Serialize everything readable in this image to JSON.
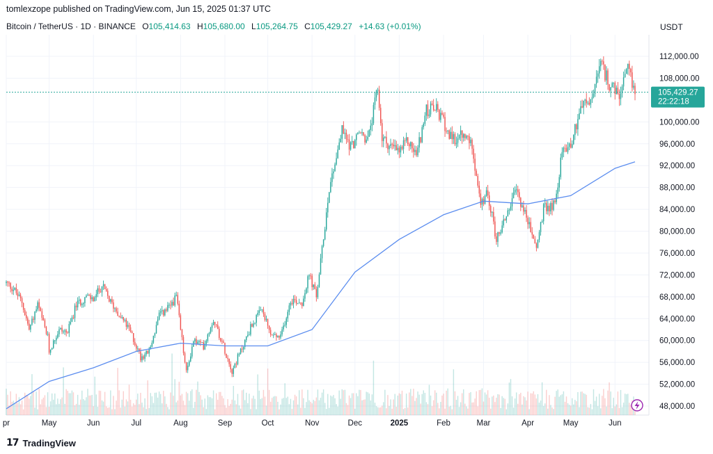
{
  "header": {
    "publisher": "tomlexzope published on TradingView.com, Jun 15, 2025 01:37 UTC",
    "symbol": "Bitcoin / TetherUS · 1D · BINANCE",
    "open_label": "O",
    "open_value": "105,414.63",
    "high_label": "H",
    "high_value": "105,680.00",
    "low_label": "L",
    "low_value": "105,264.75",
    "close_label": "C",
    "close_value": "105,429.27",
    "change": "+14.63 (+0.01%)",
    "currency": "USDT"
  },
  "footer": {
    "logo_mark": "17",
    "logo_text": "TradingView"
  },
  "colors": {
    "up": "#26a69a",
    "down": "#ef5350",
    "ma": "#5b8def",
    "last_price": "#26a69a",
    "grid": "#f0f3fa"
  },
  "chart_data": {
    "type": "candlestick",
    "y_ticks": [
      "112,000.00",
      "108,000.00",
      "100,000.00",
      "96,000.00",
      "92,000.00",
      "88,000.00",
      "84,000.00",
      "80,000.00",
      "76,000.00",
      "72,000.00",
      "68,000.00",
      "64,000.00",
      "60,000.00",
      "56,000.00",
      "52,000.00",
      "48,000.00"
    ],
    "y_tick_values": [
      112000,
      108000,
      100000,
      96000,
      92000,
      88000,
      84000,
      80000,
      76000,
      72000,
      68000,
      64000,
      60000,
      56000,
      52000,
      48000
    ],
    "ylim": [
      46000,
      116000
    ],
    "x_ticks": [
      {
        "label": "pr",
        "date": "2024-04-01"
      },
      {
        "label": "May",
        "date": "2024-05-01"
      },
      {
        "label": "Jun",
        "date": "2024-06-01"
      },
      {
        "label": "Jul",
        "date": "2024-07-01"
      },
      {
        "label": "Aug",
        "date": "2024-08-01"
      },
      {
        "label": "Sep",
        "date": "2024-09-01"
      },
      {
        "label": "Oct",
        "date": "2024-10-01"
      },
      {
        "label": "Nov",
        "date": "2024-11-01"
      },
      {
        "label": "Dec",
        "date": "2024-12-01"
      },
      {
        "label": "2025",
        "date": "2025-01-01",
        "bold": true
      },
      {
        "label": "Feb",
        "date": "2025-02-01"
      },
      {
        "label": "Mar",
        "date": "2025-03-01"
      },
      {
        "label": "Apr",
        "date": "2025-04-01"
      },
      {
        "label": "May",
        "date": "2025-05-01"
      },
      {
        "label": "Jun",
        "date": "2025-06-01"
      }
    ],
    "date_range": [
      "2024-04-01",
      "2025-06-15"
    ],
    "last_price": {
      "value": 105429.27,
      "label": "105,429.27",
      "countdown": "22:22:18"
    },
    "close_series": [
      [
        "2024-04-01",
        70500
      ],
      [
        "2024-04-06",
        69500
      ],
      [
        "2024-04-12",
        67000
      ],
      [
        "2024-04-17",
        62000
      ],
      [
        "2024-04-23",
        66500
      ],
      [
        "2024-04-30",
        60500
      ],
      [
        "2024-05-01",
        58000
      ],
      [
        "2024-05-08",
        62000
      ],
      [
        "2024-05-14",
        61500
      ],
      [
        "2024-05-20",
        66500
      ],
      [
        "2024-05-27",
        68000
      ],
      [
        "2024-06-01",
        67500
      ],
      [
        "2024-06-07",
        70000
      ],
      [
        "2024-06-13",
        67000
      ],
      [
        "2024-06-20",
        64500
      ],
      [
        "2024-06-27",
        61500
      ],
      [
        "2024-07-04",
        57000
      ],
      [
        "2024-07-10",
        58000
      ],
      [
        "2024-07-17",
        64500
      ],
      [
        "2024-07-24",
        66000
      ],
      [
        "2024-07-29",
        68000
      ],
      [
        "2024-08-05",
        54000
      ],
      [
        "2024-08-10",
        60000
      ],
      [
        "2024-08-17",
        59000
      ],
      [
        "2024-08-24",
        64000
      ],
      [
        "2024-08-31",
        59000
      ],
      [
        "2024-09-06",
        54500
      ],
      [
        "2024-09-12",
        58000
      ],
      [
        "2024-09-20",
        63000
      ],
      [
        "2024-09-27",
        65500
      ],
      [
        "2024-10-03",
        61000
      ],
      [
        "2024-10-10",
        60500
      ],
      [
        "2024-10-17",
        67500
      ],
      [
        "2024-10-25",
        67000
      ],
      [
        "2024-10-30",
        72000
      ],
      [
        "2024-11-04",
        68000
      ],
      [
        "2024-11-08",
        76500
      ],
      [
        "2024-11-13",
        88000
      ],
      [
        "2024-11-22",
        98500
      ],
      [
        "2024-11-28",
        95500
      ],
      [
        "2024-12-05",
        98000
      ],
      [
        "2024-12-10",
        96500
      ],
      [
        "2024-12-17",
        106000
      ],
      [
        "2024-12-20",
        97000
      ],
      [
        "2024-12-26",
        95500
      ],
      [
        "2025-01-01",
        94500
      ],
      [
        "2025-01-07",
        96500
      ],
      [
        "2025-01-13",
        94000
      ],
      [
        "2025-01-20",
        102000
      ],
      [
        "2025-01-26",
        102500
      ],
      [
        "2025-02-01",
        100000
      ],
      [
        "2025-02-07",
        96500
      ],
      [
        "2025-02-14",
        97500
      ],
      [
        "2025-02-21",
        96000
      ],
      [
        "2025-02-27",
        84500
      ],
      [
        "2025-03-04",
        87000
      ],
      [
        "2025-03-10",
        78500
      ],
      [
        "2025-03-17",
        83000
      ],
      [
        "2025-03-24",
        87500
      ],
      [
        "2025-03-31",
        82500
      ],
      [
        "2025-04-07",
        77000
      ],
      [
        "2025-04-12",
        84000
      ],
      [
        "2025-04-20",
        85000
      ],
      [
        "2025-04-25",
        94500
      ],
      [
        "2025-05-02",
        96500
      ],
      [
        "2025-05-08",
        103000
      ],
      [
        "2025-05-15",
        103500
      ],
      [
        "2025-05-22",
        110500
      ],
      [
        "2025-05-28",
        107000
      ],
      [
        "2025-06-04",
        104500
      ],
      [
        "2025-06-10",
        109500
      ],
      [
        "2025-06-15",
        105429
      ]
    ],
    "ma_series": [
      [
        "2024-04-01",
        47500
      ],
      [
        "2024-05-01",
        52500
      ],
      [
        "2024-06-01",
        55000
      ],
      [
        "2024-07-01",
        58000
      ],
      [
        "2024-08-01",
        59500
      ],
      [
        "2024-09-01",
        59000
      ],
      [
        "2024-10-01",
        59000
      ],
      [
        "2024-11-01",
        62000
      ],
      [
        "2024-12-01",
        72500
      ],
      [
        "2025-01-01",
        78500
      ],
      [
        "2025-02-01",
        83000
      ],
      [
        "2025-03-01",
        85500
      ],
      [
        "2025-04-01",
        85000
      ],
      [
        "2025-05-01",
        86500
      ],
      [
        "2025-06-01",
        91500
      ],
      [
        "2025-06-15",
        92700
      ]
    ]
  }
}
